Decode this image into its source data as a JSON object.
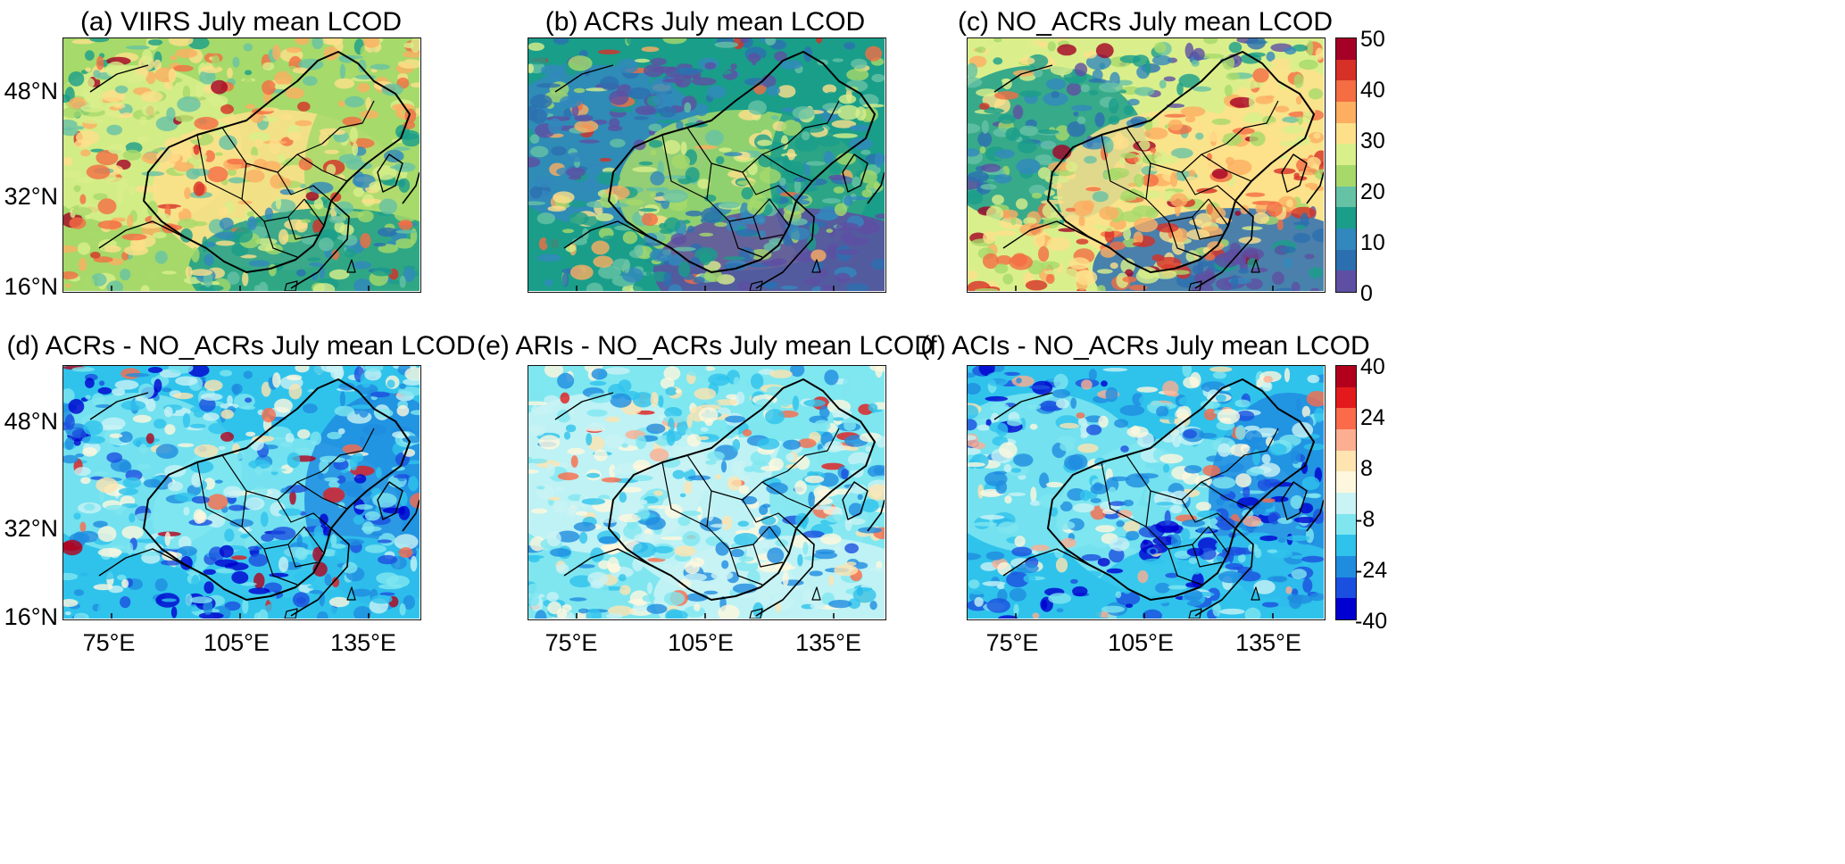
{
  "panels": [
    {
      "id": "a",
      "title": "(a) VIIRS July mean LCOD",
      "palette": "lcod",
      "base": [
        0.48,
        0.55,
        0.62,
        0.42,
        0.3
      ],
      "hot": 0.75
    },
    {
      "id": "b",
      "title": "(b) ACRs July mean LCOD",
      "palette": "lcod",
      "base": [
        0.3,
        0.18,
        0.45,
        0.3,
        0.05
      ],
      "hot": 0.7
    },
    {
      "id": "c",
      "title": "(c) NO_ACRs July mean LCOD",
      "palette": "lcod",
      "base": [
        0.55,
        0.25,
        0.6,
        0.65,
        0.1
      ],
      "hot": 0.85
    },
    {
      "id": "d",
      "title": "(d) ACRs - NO_ACRs July mean LCOD",
      "palette": "diff",
      "base": [
        0.25,
        0.38,
        0.35,
        0.2,
        0.3
      ],
      "hot": 0.8
    },
    {
      "id": "e",
      "title": "(e) ARIs - NO_ACRs July mean LCOD",
      "palette": "diff",
      "base": [
        0.4,
        0.45,
        0.42,
        0.38,
        0.42
      ],
      "hot": 0.72
    },
    {
      "id": "f",
      "title": "(f) ACIs - NO_ACRs July mean LCOD",
      "palette": "diff",
      "base": [
        0.25,
        0.38,
        0.35,
        0.2,
        0.3
      ],
      "hot": 0.62
    }
  ],
  "lat_labels": [
    "48°N",
    "32°N",
    "16°N"
  ],
  "lon_labels": [
    "75°E",
    "105°E",
    "135°E"
  ],
  "colorbar_top": {
    "ticks": [
      "50",
      "40",
      "30",
      "20",
      "10",
      "0"
    ],
    "colors": [
      "#a50026",
      "#d73027",
      "#f46d43",
      "#fdae61",
      "#fee08b",
      "#d9ef8b",
      "#a6d96a",
      "#66c2a5",
      "#1a9e8a",
      "#3288bd",
      "#2c6fb0",
      "#5e4fa2"
    ]
  },
  "colorbar_bottom": {
    "ticks": [
      "40",
      "24",
      "8",
      "-8",
      "-24",
      "-40"
    ],
    "colors": [
      "#b2001c",
      "#e31a1c",
      "#fb6a4a",
      "#fcae91",
      "#fee4b0",
      "#fff7dd",
      "#c9f3f5",
      "#7fe6f0",
      "#2fc3ec",
      "#1f8ce0",
      "#1b4fe0",
      "#0000d0"
    ]
  }
}
